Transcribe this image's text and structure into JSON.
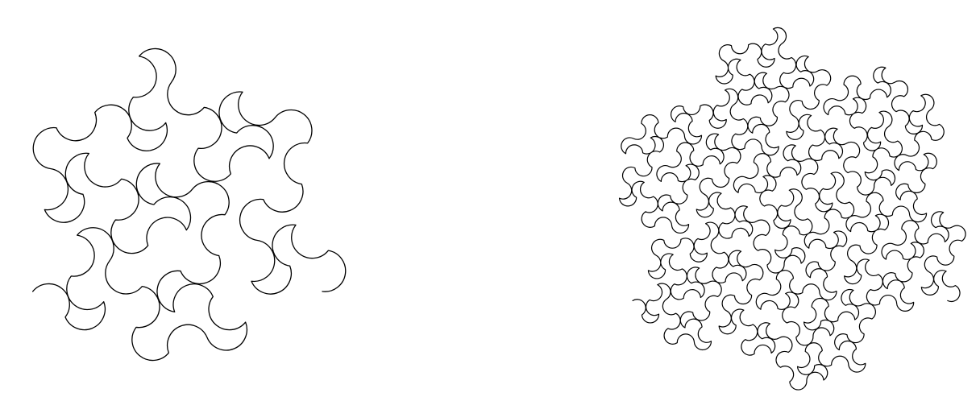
{
  "figure": {
    "background": "#ffffff",
    "stroke_color": "#000000",
    "curves": [
      {
        "name": "gosper-arc-curve-order-2",
        "order": 2
      },
      {
        "name": "gosper-arc-curve-order-3",
        "order": 3
      }
    ]
  }
}
